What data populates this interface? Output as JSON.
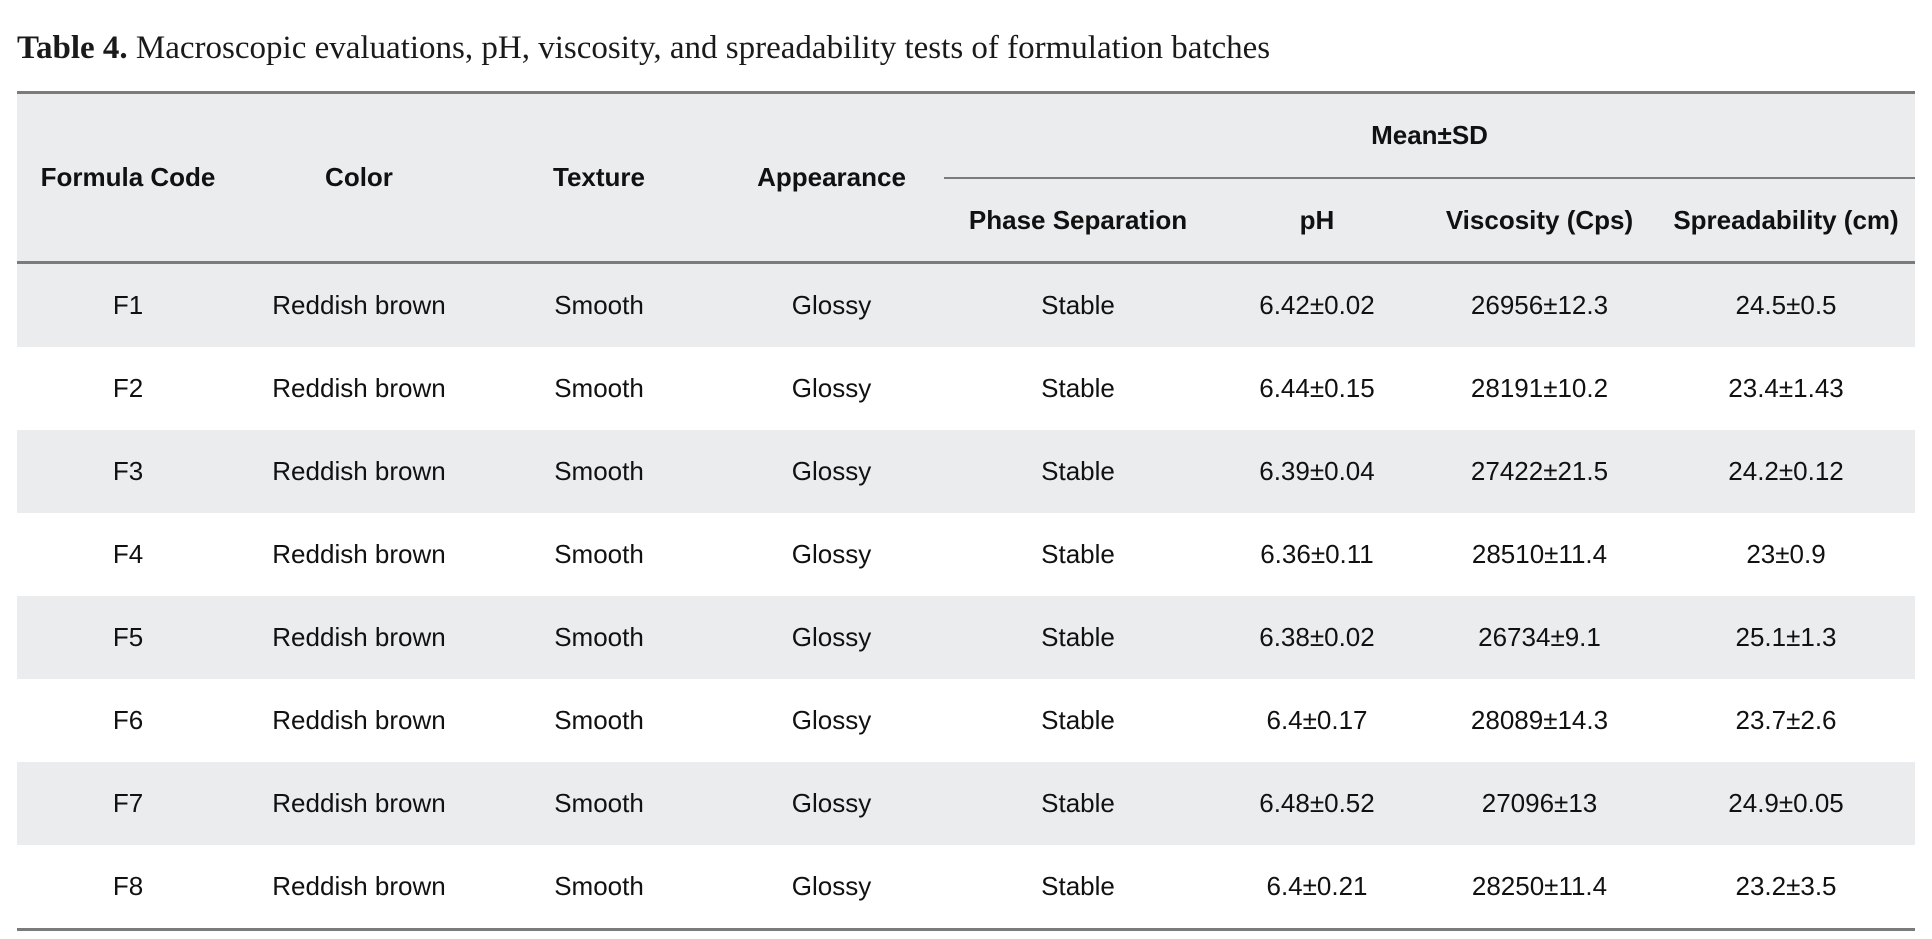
{
  "caption": {
    "label": "Table 4.",
    "text": "Macroscopic evaluations, pH, viscosity, and spreadability tests of formulation batches"
  },
  "header": {
    "formula_code": "Formula Code",
    "color": "Color",
    "texture": "Texture",
    "appearance": "Appearance",
    "group": "Mean±SD",
    "phase_separation": "Phase Separation",
    "ph": "pH",
    "viscosity": "Viscosity (Cps)",
    "spreadability": "Spreadability (cm)"
  },
  "rows": [
    [
      "F1",
      "Reddish brown",
      "Smooth",
      "Glossy",
      "Stable",
      "6.42±0.02",
      "26956±12.3",
      "24.5±0.5"
    ],
    [
      "F2",
      "Reddish brown",
      "Smooth",
      "Glossy",
      "Stable",
      "6.44±0.15",
      "28191±10.2",
      "23.4±1.43"
    ],
    [
      "F3",
      "Reddish brown",
      "Smooth",
      "Glossy",
      "Stable",
      "6.39±0.04",
      "27422±21.5",
      "24.2±0.12"
    ],
    [
      "F4",
      "Reddish brown",
      "Smooth",
      "Glossy",
      "Stable",
      "6.36±0.11",
      "28510±11.4",
      "23±0.9"
    ],
    [
      "F5",
      "Reddish brown",
      "Smooth",
      "Glossy",
      "Stable",
      "6.38±0.02",
      "26734±9.1",
      "25.1±1.3"
    ],
    [
      "F6",
      "Reddish brown",
      "Smooth",
      "Glossy",
      "Stable",
      "6.4±0.17",
      "28089±14.3",
      "23.7±2.6"
    ],
    [
      "F7",
      "Reddish brown",
      "Smooth",
      "Glossy",
      "Stable",
      "6.48±0.52",
      "27096±13",
      "24.9±0.05"
    ],
    [
      "F8",
      "Reddish brown",
      "Smooth",
      "Glossy",
      "Stable",
      "6.4±0.21",
      "28250±11.4",
      "23.2±3.5"
    ]
  ]
}
